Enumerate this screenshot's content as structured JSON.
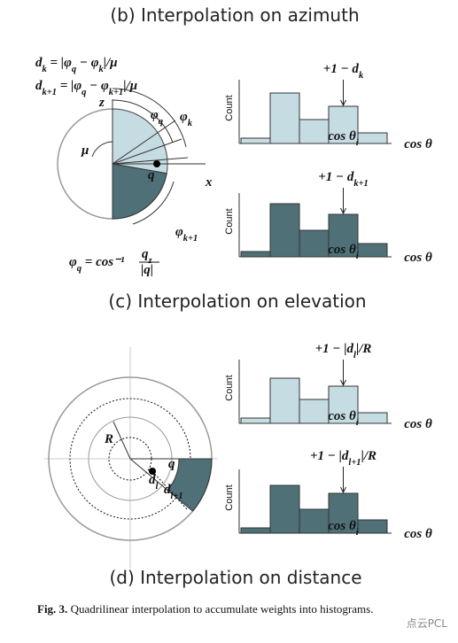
{
  "titles": [
    "(b) Interpolation on azimuth",
    "(c) Interpolation on elevation",
    "(d) Interpolation on distance"
  ],
  "azimuth": {
    "formulas": [
      [
        [
          "d",
          "k"
        ],
        [
          " = |φ",
          "q"
        ],
        [
          " − φ",
          "k"
        ],
        [
          "|/μ"
        ]
      ],
      [
        [
          "d",
          "k+1"
        ],
        [
          " = |φ",
          "q"
        ],
        [
          " − φ",
          "k+1"
        ],
        [
          "|/μ"
        ]
      ]
    ],
    "angle_formula": {
      "lhs": [
        [
          "φ",
          "q"
        ],
        [
          " = cos⁻¹"
        ]
      ],
      "num": [
        [
          "q",
          "z"
        ]
      ],
      "den": [
        [
          "|q|"
        ]
      ]
    },
    "labels": {
      "z": [
        [
          "z"
        ]
      ],
      "x": [
        [
          "x"
        ]
      ],
      "mu": [
        [
          "μ"
        ]
      ],
      "phi_q": [
        [
          "φ",
          "q"
        ]
      ],
      "phi_k": [
        [
          "φ",
          "k"
        ]
      ],
      "phi_k1": [
        [
          "φ",
          "k+1"
        ]
      ],
      "q": [
        [
          "q"
        ]
      ]
    }
  },
  "distance": {
    "labels": {
      "R": [
        [
          "R"
        ]
      ],
      "q": [
        [
          "q"
        ]
      ],
      "d_l": [
        [
          "d",
          "l"
        ]
      ],
      "d_l1": [
        [
          "d",
          "l+1"
        ]
      ]
    }
  },
  "histograms": [
    {
      "ylabel": "Count",
      "xlabel": "cos θ",
      "bin_label": [
        [
          "cos θ",
          "i"
        ]
      ],
      "annotation": [
        [
          "+1 − d",
          "k"
        ]
      ],
      "values": [
        1,
        9.5,
        4.5,
        7,
        2
      ],
      "color": "#c6dce3"
    },
    {
      "ylabel": "Count",
      "xlabel": "cos θ",
      "bin_label": [
        [
          "cos θ",
          "i"
        ]
      ],
      "annotation": [
        [
          "+1 − d",
          "k+1"
        ]
      ],
      "values": [
        1,
        10,
        5,
        8,
        2.5
      ],
      "color": "#4f7077"
    },
    {
      "ylabel": "Count",
      "xlabel": "cos θ",
      "bin_label": [
        [
          "cos θ",
          "i"
        ]
      ],
      "annotation": [
        [
          "+1 − |d",
          "l"
        ],
        [
          "|/R"
        ]
      ],
      "values": [
        1,
        8.5,
        4.5,
        7,
        2
      ],
      "color": "#c6dce3"
    },
    {
      "ylabel": "Count",
      "xlabel": "cos θ",
      "bin_label": [
        [
          "cos θ",
          "i"
        ]
      ],
      "annotation": [
        [
          "+1 − |d",
          "l+1"
        ],
        [
          "|/R"
        ]
      ],
      "values": [
        1,
        9,
        4.5,
        7.5,
        2.5
      ],
      "color": "#4f7077"
    }
  ],
  "caption": {
    "label": "Fig. 3.",
    "text": "Quadrilinear interpolation to accumulate weights into histograms."
  },
  "watermark": "点云PCL"
}
